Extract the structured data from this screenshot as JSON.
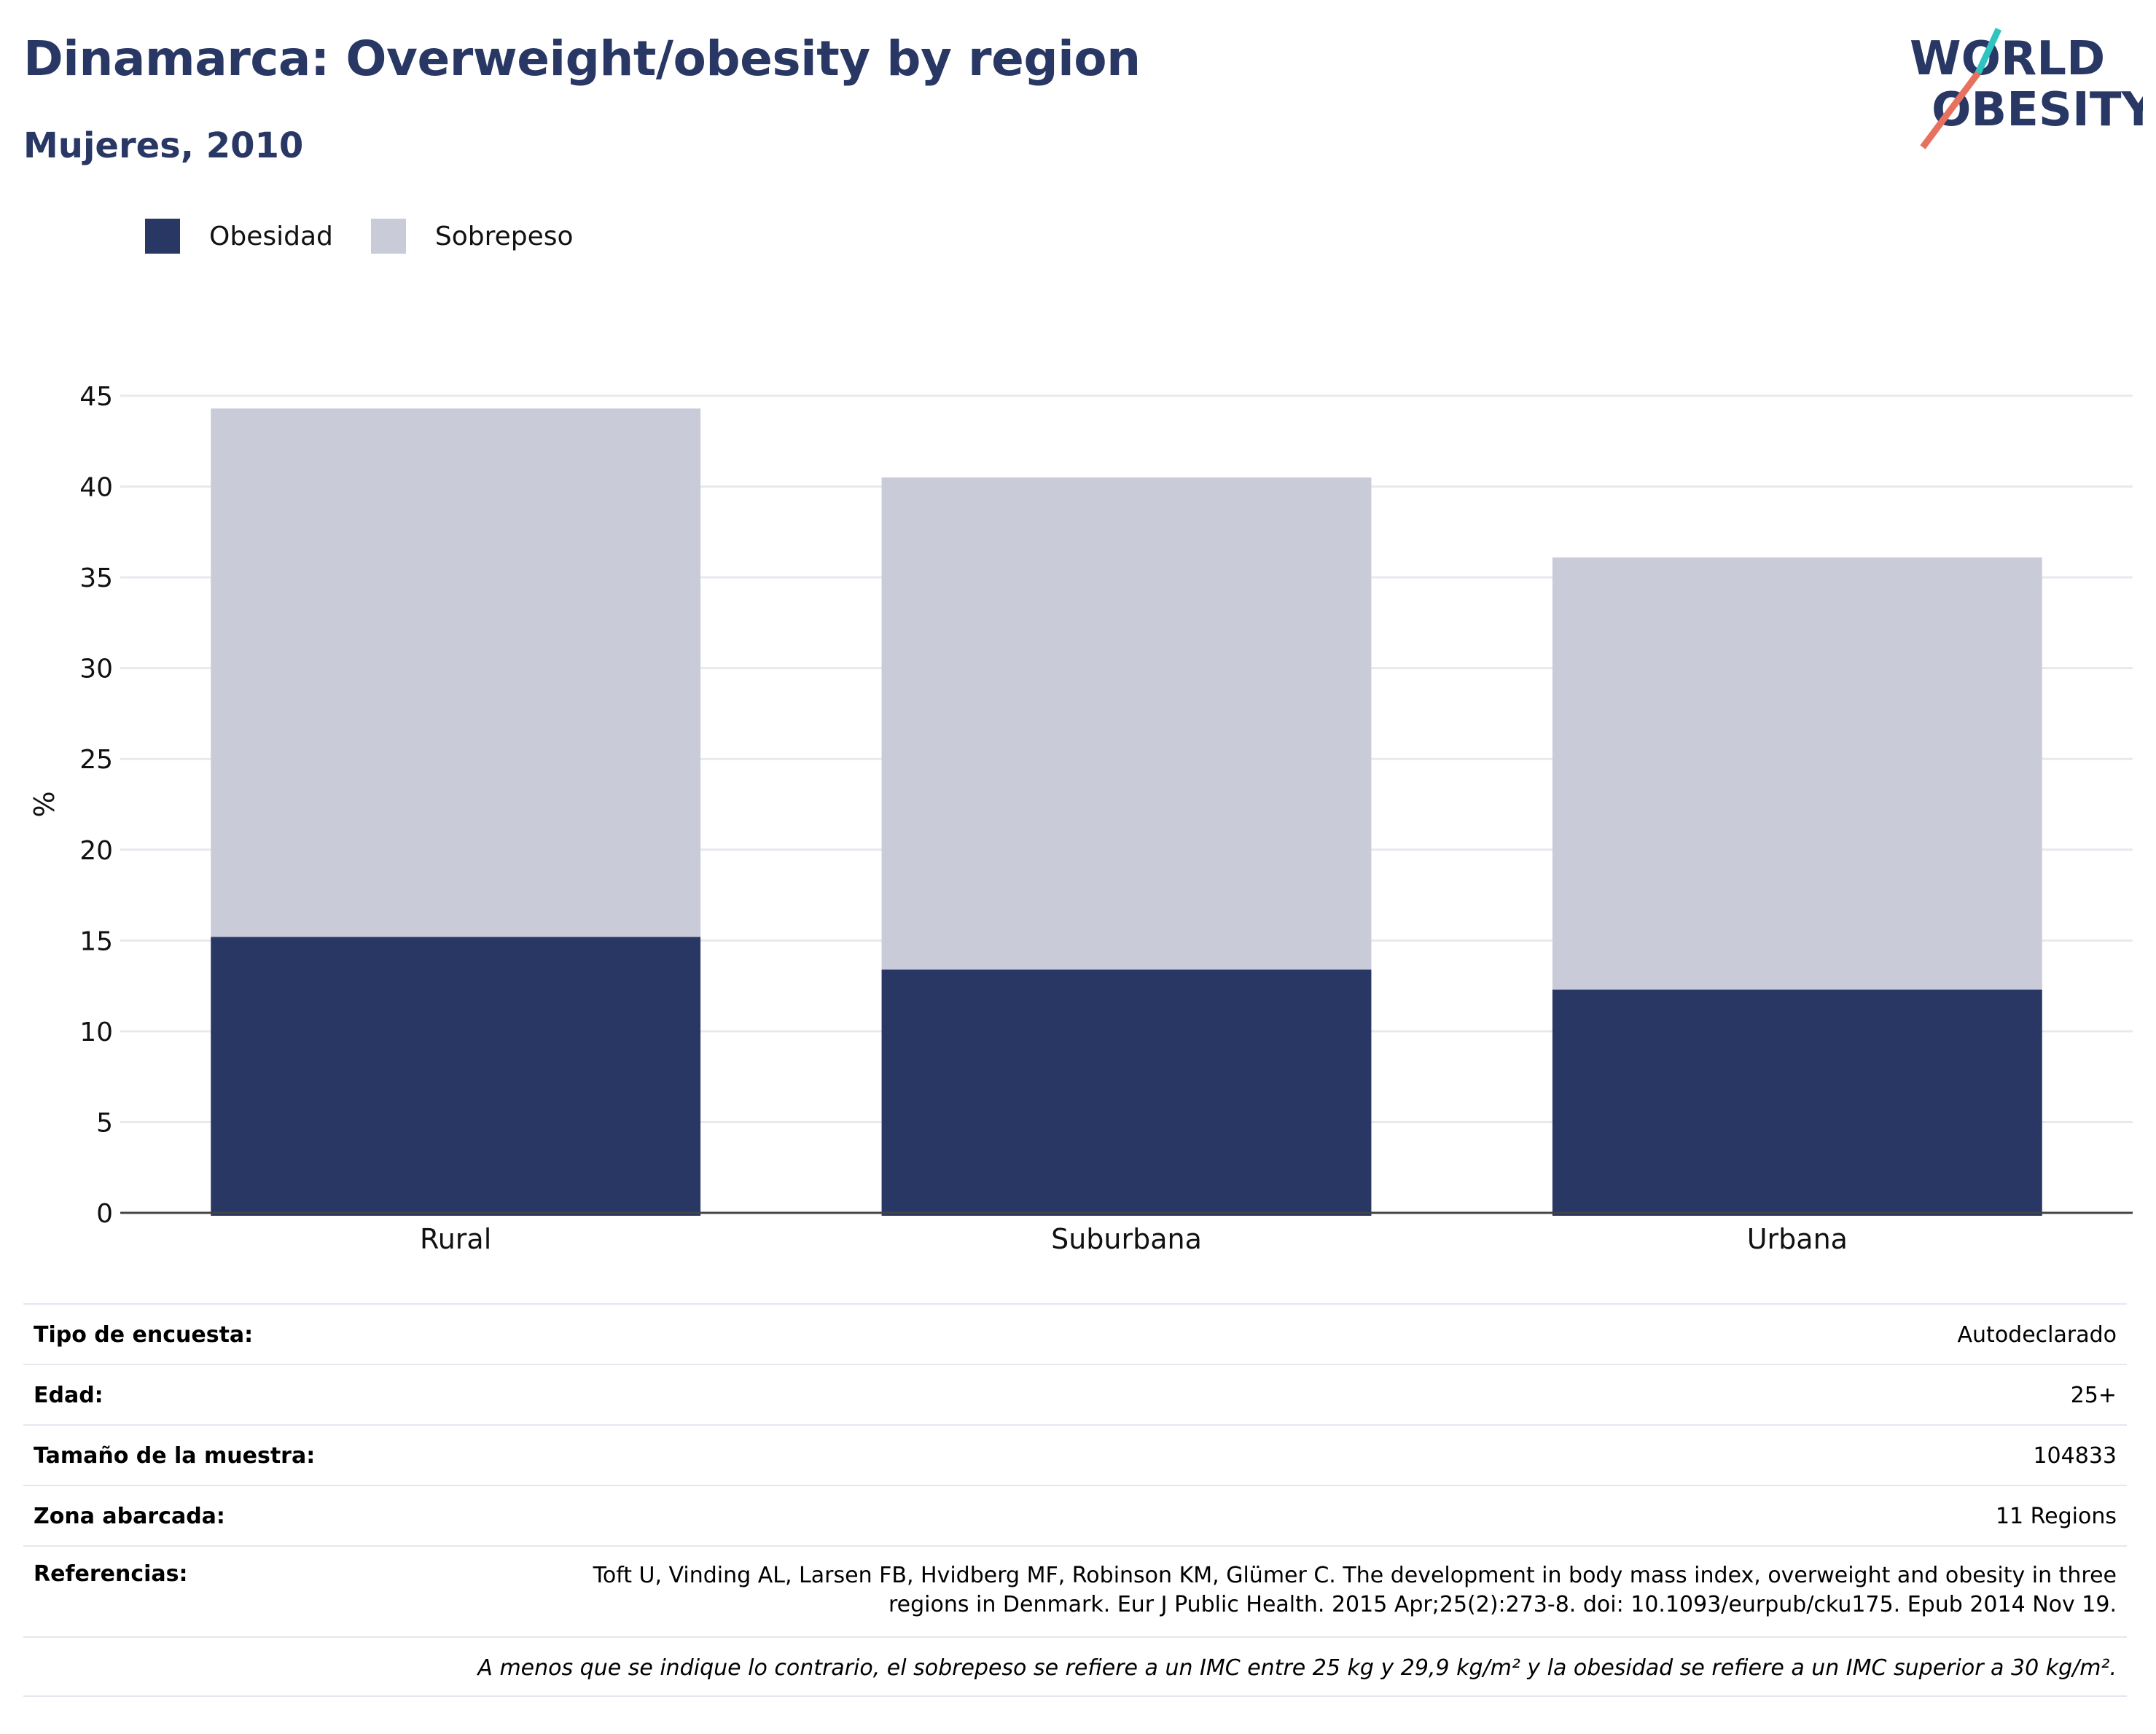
{
  "header": {
    "title": "Dinamarca: Overweight/obesity by region",
    "subtitle": "Mujeres, 2010"
  },
  "logo": {
    "line1": "WORLD",
    "line2": "OBESITY"
  },
  "colors": {
    "obesity": "#283764",
    "overweight": "#c9ccd8",
    "text_dark": "#283764",
    "grid": "#e8e9ef",
    "logo_teal": "#2ec4c0",
    "logo_coral": "#e8705f"
  },
  "chart_data": {
    "type": "bar",
    "stacked": true,
    "categories": [
      "Rural",
      "Suburbana",
      "Urbana"
    ],
    "series": [
      {
        "name": "Obesidad",
        "values": [
          15.2,
          13.4,
          12.3
        ]
      },
      {
        "name": "Sobrepeso",
        "values": [
          29.1,
          27.1,
          23.8
        ]
      }
    ],
    "ylabel": "%",
    "ylim": [
      0,
      45
    ],
    "yticks": [
      0,
      5,
      10,
      15,
      20,
      25,
      30,
      35,
      40,
      45
    ],
    "grid": true,
    "legend_position": "top-left"
  },
  "info": [
    {
      "label": "Tipo de encuesta:",
      "value": "Autodeclarado"
    },
    {
      "label": "Edad:",
      "value": "25+"
    },
    {
      "label": "Tamaño de la muestra:",
      "value": "104833"
    },
    {
      "label": "Zona abarcada:",
      "value": "11 Regions"
    },
    {
      "label": "Referencias:",
      "value": "Toft U, Vinding AL, Larsen FB, Hvidberg MF, Robinson KM, Glümer C. The development in body mass index, overweight and obesity in three regions in Denmark. Eur J Public Health. 2015 Apr;25(2):273-8. doi: 10.1093/eurpub/cku175. Epub 2014 Nov 19."
    }
  ],
  "footnote": "A menos que se indique lo contrario, el sobrepeso se refiere a un IMC entre 25 kg y 29,9 kg/m² y la obesidad se refiere a un IMC superior a 30 kg/m²."
}
